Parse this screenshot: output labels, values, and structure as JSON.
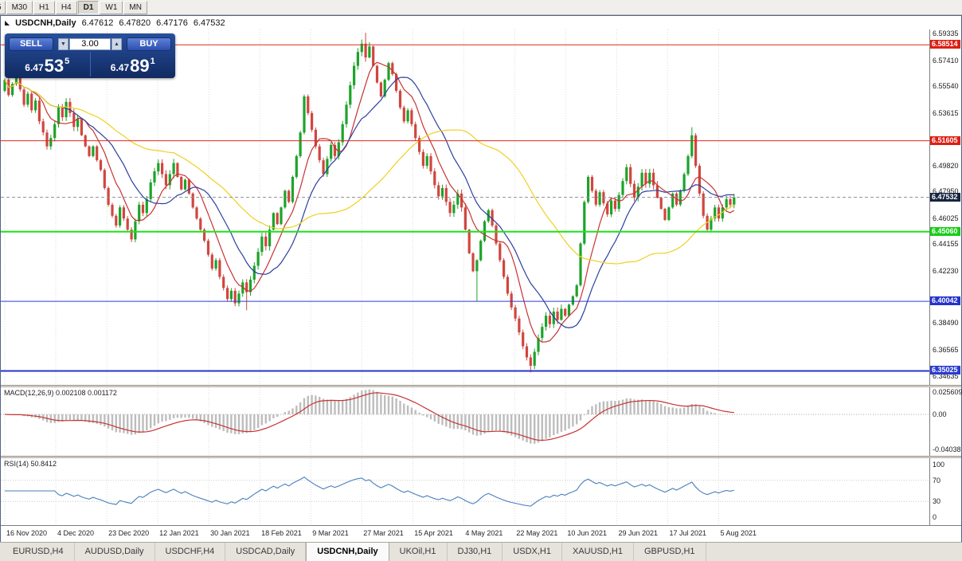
{
  "icons": {
    "one_click_toggle": "◣",
    "volume_up": "▲",
    "volume_down": "▼"
  },
  "toolbar": {
    "periods": [
      {
        "label": "5",
        "active": false,
        "partial": true
      },
      {
        "label": "M30",
        "active": false
      },
      {
        "label": "H1",
        "active": false
      },
      {
        "label": "H4",
        "active": false
      },
      {
        "label": "D1",
        "active": true
      },
      {
        "label": "W1",
        "active": false
      },
      {
        "label": "MN",
        "active": false
      }
    ]
  },
  "chart_header": {
    "symbol": "USDCNH,Daily",
    "open": "6.47612",
    "high": "6.47820",
    "low": "6.47176",
    "close": "6.47532"
  },
  "one_click": {
    "sell_label": "SELL",
    "buy_label": "BUY",
    "volume": "3.00",
    "sell_price_prefix": "6.47",
    "sell_price_big": "53",
    "sell_price_sup": "5",
    "buy_price_prefix": "6.47",
    "buy_price_big": "89",
    "buy_price_sup": "1"
  },
  "price_axis": {
    "ticks": [
      "6.59335",
      "6.57410",
      "6.55540",
      "6.53615",
      "6.49820",
      "6.47950",
      "6.46025",
      "6.44155",
      "6.42230",
      "6.38490",
      "6.36565",
      "6.34635"
    ],
    "badges": [
      {
        "value": "6.58514",
        "bg": "#dd1f14",
        "fg": "#ffffff",
        "kind": "level"
      },
      {
        "value": "6.51605",
        "bg": "#dd1f14",
        "fg": "#ffffff",
        "kind": "level"
      },
      {
        "value": "6.47532",
        "bg": "#16243e",
        "fg": "#ffffff",
        "kind": "bid"
      },
      {
        "value": "6.45060",
        "bg": "#17cd17",
        "fg": "#ffffff",
        "kind": "level"
      },
      {
        "value": "6.40042",
        "bg": "#2433cc",
        "fg": "#ffffff",
        "kind": "level"
      },
      {
        "value": "6.35025",
        "bg": "#2a3ad0",
        "fg": "#ffffff",
        "kind": "level"
      }
    ]
  },
  "levels": [
    {
      "price": 6.58514,
      "color": "#e02a20",
      "width": 1
    },
    {
      "price": 6.51605,
      "color": "#e02a20",
      "width": 1
    },
    {
      "price": 6.4506,
      "color": "#1ae51a",
      "width": 2
    },
    {
      "price": 6.40042,
      "color": "#2c3ed8",
      "width": 1
    },
    {
      "price": 6.35025,
      "color": "#2636c8",
      "width": 2
    }
  ],
  "current_price": {
    "value": 6.47532,
    "label": "6.47532"
  },
  "macd_panel": {
    "label": "MACD(12,26,9) 0.002108 0.001172",
    "axis_labels": [
      {
        "v": 0.025609,
        "text": "0.025609"
      },
      {
        "v": 0,
        "text": "0.00"
      },
      {
        "v": -0.04038,
        "text": "-0.04038"
      }
    ]
  },
  "rsi_panel": {
    "label": "RSI(14) 50.8412",
    "color": "#4a7fbe",
    "levels": [
      70,
      30
    ],
    "axis_labels": [
      {
        "v": 100,
        "text": "100"
      },
      {
        "v": 70,
        "text": "70"
      },
      {
        "v": 30,
        "text": "30"
      },
      {
        "v": 0,
        "text": "0"
      }
    ]
  },
  "date_axis": [
    "16 Nov 2020",
    "4 Dec 2020",
    "23 Dec 2020",
    "12 Jan 2021",
    "30 Jan 2021",
    "18 Feb 2021",
    "9 Mar 2021",
    "27 Mar 2021",
    "15 Apr 2021",
    "4 May 2021",
    "22 May 2021",
    "10 Jun 2021",
    "29 Jun 2021",
    "17 Jul 2021",
    "5 Aug 2021"
  ],
  "tabs": [
    "EURUSD,H4",
    "AUDUSD,Daily",
    "USDCHF,H4",
    "USDCAD,Daily",
    "USDCNH,Daily",
    "UKOil,H1",
    "DJ30,H1",
    "USDX,H1",
    "XAUUSD,H1",
    "GBPUSD,H1"
  ],
  "active_tab": "USDCNH,Daily",
  "chart_data": {
    "type": "candlestick",
    "symbol": "USDCNH",
    "timeframe": "Daily",
    "price_range": {
      "top": 6.5962,
      "bottom": 6.3402
    },
    "first_open": 6.552,
    "closes": [
      6.56,
      6.549,
      6.557,
      6.566,
      6.553,
      6.542,
      6.55,
      6.538,
      6.545,
      6.53,
      6.522,
      6.512,
      6.518,
      6.528,
      6.54,
      6.533,
      6.544,
      6.536,
      6.526,
      6.532,
      6.52,
      6.512,
      6.505,
      6.512,
      6.502,
      6.495,
      6.482,
      6.47,
      6.462,
      6.455,
      6.468,
      6.46,
      6.452,
      6.445,
      6.458,
      6.47,
      6.464,
      6.474,
      6.486,
      6.494,
      6.5,
      6.492,
      6.484,
      6.492,
      6.5,
      6.49,
      6.481,
      6.488,
      6.478,
      6.468,
      6.46,
      6.452,
      6.444,
      6.434,
      6.424,
      6.43,
      6.418,
      6.41,
      6.402,
      6.408,
      6.399,
      6.406,
      6.414,
      6.407,
      6.416,
      6.426,
      6.436,
      6.447,
      6.44,
      6.452,
      6.464,
      6.456,
      6.468,
      6.48,
      6.472,
      6.49,
      6.505,
      6.522,
      6.548,
      6.536,
      6.524,
      6.512,
      6.502,
      6.492,
      6.503,
      6.513,
      6.505,
      6.515,
      6.528,
      6.542,
      6.556,
      6.57,
      6.58,
      6.586,
      6.576,
      6.584,
      6.57,
      6.558,
      6.548,
      6.56,
      6.572,
      6.564,
      6.552,
      6.54,
      6.53,
      6.538,
      6.528,
      6.518,
      6.508,
      6.498,
      6.505,
      6.494,
      6.484,
      6.476,
      6.482,
      6.472,
      6.464,
      6.47,
      6.478,
      6.468,
      6.452,
      6.435,
      6.422,
      6.43,
      6.444,
      6.458,
      6.466,
      6.455,
      6.442,
      6.43,
      6.418,
      6.406,
      6.396,
      6.388,
      6.378,
      6.368,
      6.36,
      6.354,
      6.364,
      6.374,
      6.382,
      6.39,
      6.384,
      6.393,
      6.387,
      6.395,
      6.39,
      6.398,
      6.404,
      6.412,
      6.442,
      6.472,
      6.49,
      6.48,
      6.47,
      6.479,
      6.471,
      6.463,
      6.473,
      6.467,
      6.477,
      6.487,
      6.497,
      6.485,
      6.475,
      6.483,
      6.493,
      6.485,
      6.493,
      6.484,
      6.475,
      6.467,
      6.459,
      6.468,
      6.478,
      6.47,
      6.48,
      6.492,
      6.505,
      6.52,
      6.498,
      6.478,
      6.462,
      6.452,
      6.46,
      6.468,
      6.46,
      6.468,
      6.474,
      6.47,
      6.4753
    ],
    "wick_overrides": {
      "63": {
        "low": 6.394
      },
      "94": {
        "high": 6.5938
      },
      "123": {
        "low": 6.4005
      },
      "137": {
        "low": 6.3492
      },
      "179": {
        "high": 6.5258
      }
    },
    "up_color": "#1da32a",
    "down_color": "#d0463f",
    "ma": [
      {
        "period": 8,
        "color": "#c83232"
      },
      {
        "period": 16,
        "color": "#2b3f9e"
      },
      {
        "period": 45,
        "color": "#f0d020"
      }
    ],
    "macd": {
      "fast": 12,
      "slow": 26,
      "signal": 9,
      "hist_color": "#bdbdbd",
      "signal_color": "#c63434"
    },
    "rsi_period": 14
  }
}
